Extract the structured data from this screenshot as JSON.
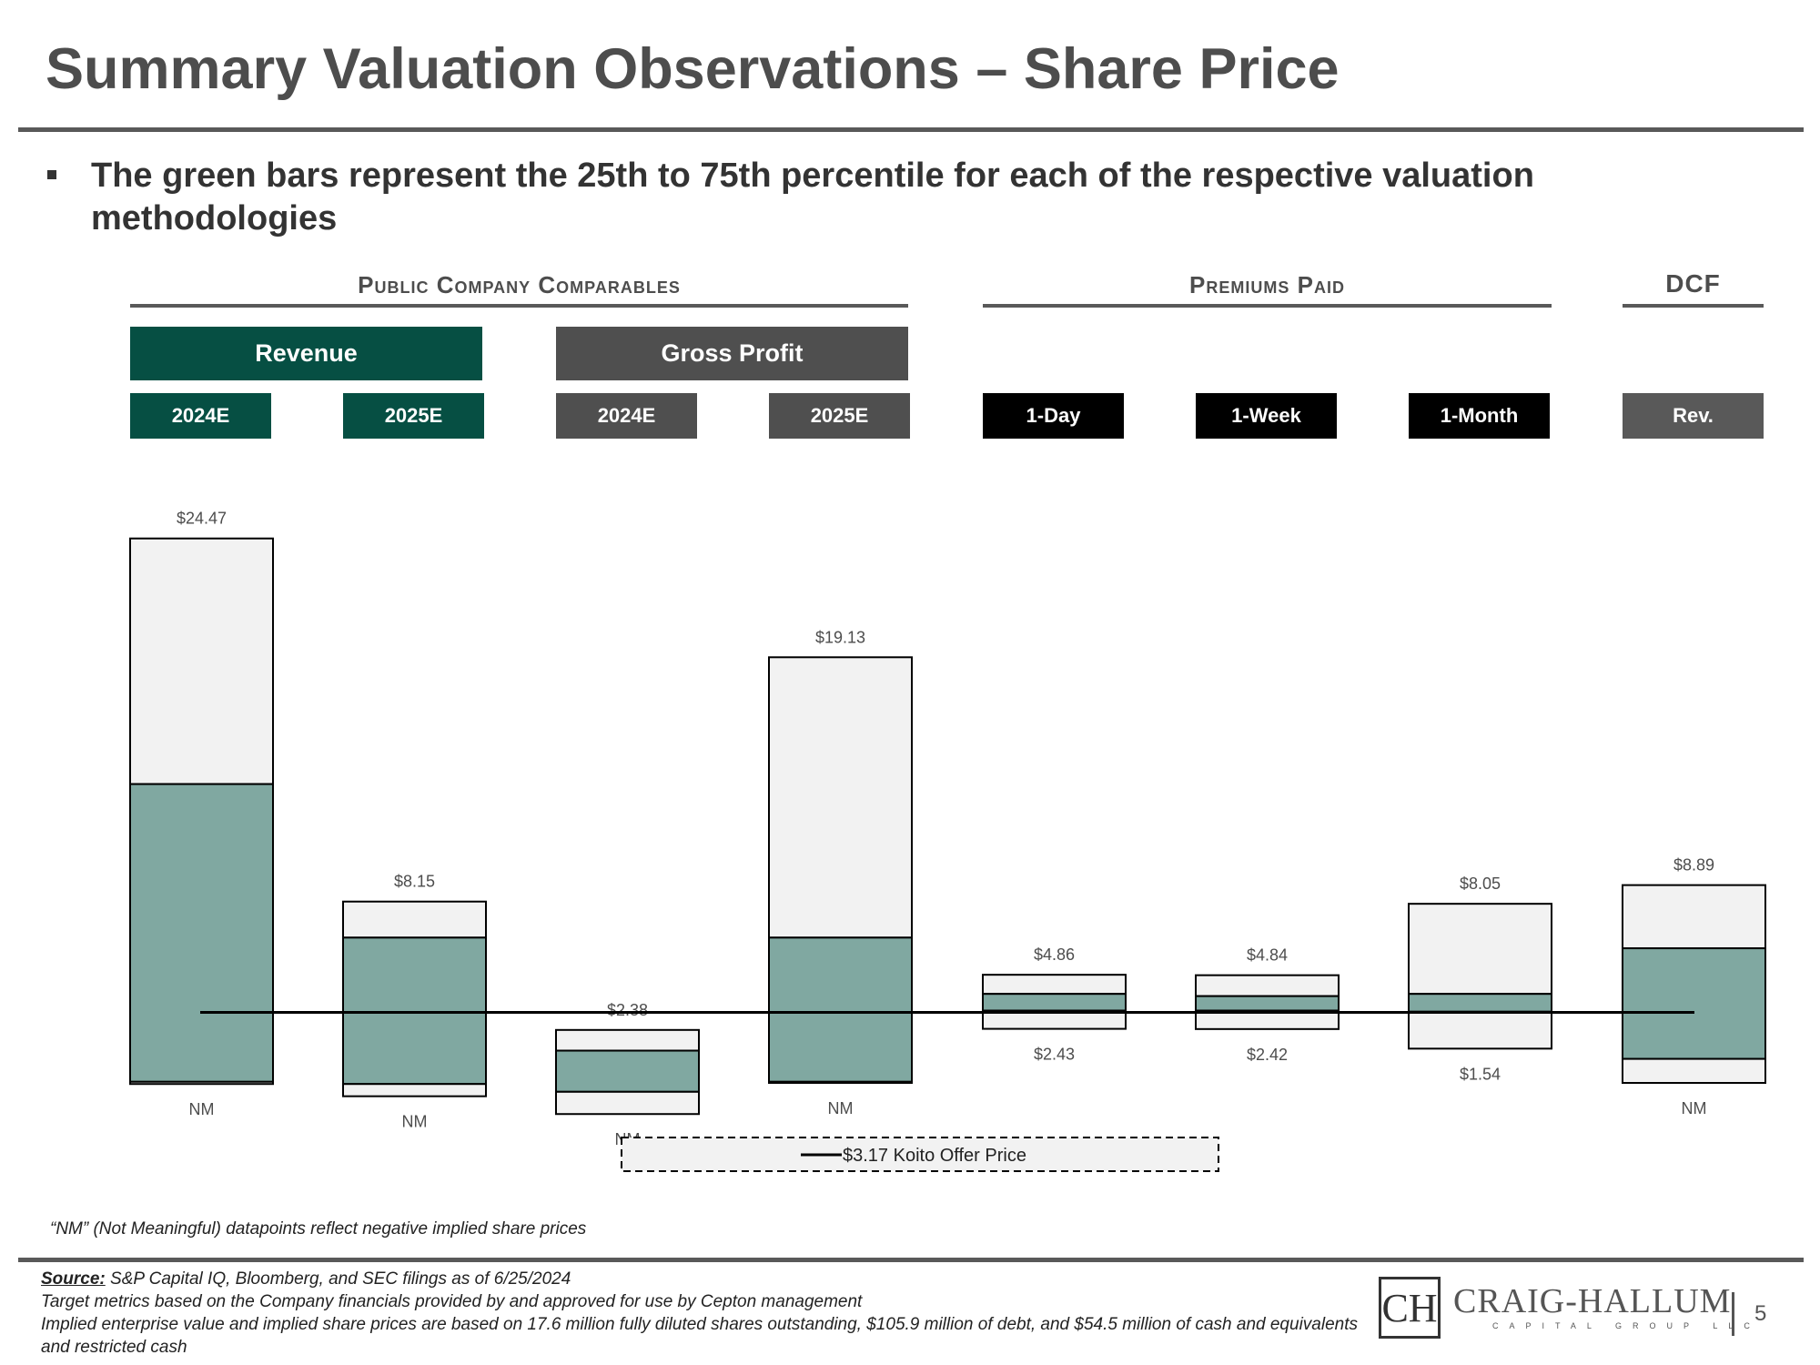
{
  "title": "Summary Valuation Observations – Share Price",
  "bullet": "The green bars represent the 25th to 75th percentile for each of the respective valuation methodologies",
  "sections": {
    "public_comps": "Public Company Comparables",
    "premiums_paid": "Premiums Paid",
    "dcf": "DCF"
  },
  "groups": {
    "revenue": "Revenue",
    "gross_profit": "Gross Profit"
  },
  "colors": {
    "dark_green": "#064f43",
    "dark_gray": "#4f4f4f",
    "black": "#000000",
    "gray": "#595959",
    "green_bar": "#80a8a1",
    "light_bar": "#f2f2f2"
  },
  "chart_data": {
    "type": "floating-bar",
    "reference_line": {
      "value": 3.17,
      "label": "$3.17 Koito Offer Price"
    },
    "ylim": [
      -0.6,
      27
    ],
    "categories": [
      {
        "label": "2024E",
        "header_color": "#064f43",
        "high": 24.47,
        "p75": 13.43,
        "p25": 0.05,
        "low": -0.05,
        "high_label": "$24.47",
        "low_label": "NM"
      },
      {
        "label": "2025E",
        "header_color": "#064f43",
        "high": 8.15,
        "p75": 6.53,
        "p25": -0.05,
        "low": -0.6,
        "high_label": "$8.15",
        "low_label": "NM"
      },
      {
        "label": "2024E",
        "header_color": "#4f4f4f",
        "high": 2.38,
        "p75": 1.45,
        "p25": -0.4,
        "low": -1.4,
        "high_label": "$2.38",
        "low_label": "NM"
      },
      {
        "label": "2025E",
        "header_color": "#4f4f4f",
        "high": 19.13,
        "p75": 6.53,
        "p25": 0.05,
        "low": 0.0,
        "high_label": "$19.13",
        "low_label": "NM"
      },
      {
        "label": "1-Day",
        "header_color": "#000000",
        "high": 4.86,
        "p75": 4.0,
        "p25": 3.25,
        "low": 2.43,
        "high_label": "$4.86",
        "low_label": "$2.43"
      },
      {
        "label": "1-Week",
        "header_color": "#000000",
        "high": 4.84,
        "p75": 3.9,
        "p25": 3.25,
        "low": 2.42,
        "high_label": "$4.84",
        "low_label": "$2.42"
      },
      {
        "label": "1-Month",
        "header_color": "#000000",
        "high": 8.05,
        "p75": 4.0,
        "p25": 3.2,
        "low": 1.54,
        "high_label": "$8.05",
        "low_label": "$1.54"
      },
      {
        "label": "Rev.",
        "header_color": "#595959",
        "high": 8.89,
        "p75": 6.05,
        "p25": 1.08,
        "low": 0.0,
        "high_label": "$8.89",
        "low_label": "NM"
      }
    ]
  },
  "footnote_nm": "“NM” (Not Meaningful) datapoints reflect negative implied share prices",
  "source": {
    "label": "Source:",
    "line1": "S&P Capital IQ, Bloomberg, and SEC filings as of 6/25/2024",
    "line2": "Target metrics based on the Company financials provided by and approved for use by Cepton management",
    "line3": "Implied enterprise value and implied share prices are based on 17.6 million fully diluted shares outstanding, $105.9 million of debt, and $54.5 million of cash and equivalents and restricted cash"
  },
  "logo": {
    "name": "CRAIG-HALLUM",
    "tagline": "CAPITAL GROUP LLC",
    "monogram": "CH"
  },
  "page_number": "5"
}
